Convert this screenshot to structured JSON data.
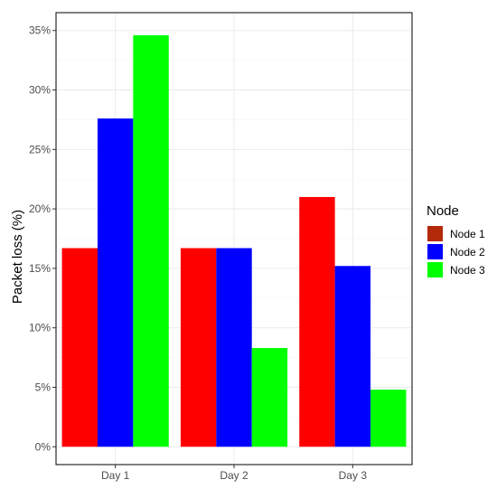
{
  "chart_data": {
    "type": "bar",
    "categories": [
      "Day 1",
      "Day 2",
      "Day 3"
    ],
    "series": [
      {
        "name": "Node 1",
        "values": [
          16.7,
          16.7,
          21.0
        ]
      },
      {
        "name": "Node 2",
        "values": [
          27.6,
          16.7,
          15.2
        ]
      },
      {
        "name": "Node 3",
        "values": [
          34.6,
          8.3,
          4.8
        ]
      }
    ],
    "series_colors": [
      "#ff0000",
      "#0000ff",
      "#00ff00"
    ],
    "legend_swatch_colors": [
      "#b22a0a",
      "#0000ff",
      "#00ff00"
    ],
    "ylabel": "Packet loss (%)",
    "xlabel": "",
    "ylim": [
      -1.5,
      36.5
    ],
    "yticks": [
      0,
      5,
      10,
      15,
      20,
      25,
      30,
      35
    ],
    "ytick_labels": [
      "0%",
      "5%",
      "10%",
      "15%",
      "20%",
      "25%",
      "30%",
      "35%"
    ],
    "legend_title": "Node",
    "legend_position": "right",
    "grid": true
  }
}
